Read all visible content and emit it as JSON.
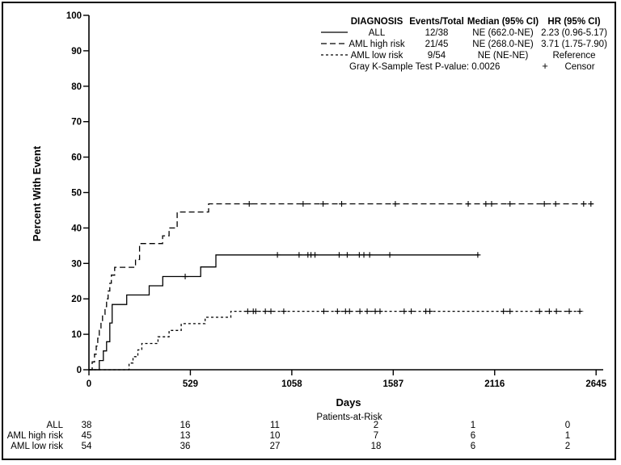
{
  "figure": {
    "background": "#ffffff",
    "foreground": "#000000",
    "border_color": "#000000"
  },
  "chart_data": {
    "type": "line",
    "subtype": "cumulative-incidence-step",
    "title": "",
    "xlabel": "Days",
    "ylabel": "Percent With Event",
    "xlim": [
      0,
      2645
    ],
    "ylim": [
      0,
      100
    ],
    "xticks": [
      0,
      529,
      1058,
      1587,
      2116,
      2645
    ],
    "yticks": [
      0,
      10,
      20,
      30,
      40,
      50,
      60,
      70,
      80,
      90,
      100
    ],
    "grid": false,
    "legend": {
      "position": "top-right",
      "headers": [
        "DIAGNOSIS",
        "Events/Total",
        "Median (95% CI)",
        "HR (95% CI)"
      ],
      "pvalue_text": "Gray K-Sample Test P-value: 0.0026",
      "censor_symbol": "+",
      "censor_label": "Censor"
    },
    "series": [
      {
        "name": "ALL",
        "line_style": "solid",
        "events_total": "12/38",
        "median_ci": "NE (662.0-NE)",
        "hr_ci": "2.23 (0.96-5.17)",
        "steps": [
          [
            0,
            0
          ],
          [
            54,
            2.6
          ],
          [
            75,
            5.3
          ],
          [
            92,
            7.9
          ],
          [
            109,
            13.2
          ],
          [
            121,
            18.4
          ],
          [
            197,
            21.1
          ],
          [
            314,
            23.7
          ],
          [
            385,
            26.3
          ],
          [
            583,
            29.0
          ],
          [
            662,
            32.4
          ]
        ],
        "end_day": 2035,
        "censor_days": [
          502,
          983,
          1096,
          1142,
          1158,
          1179,
          1305,
          1347,
          1410,
          1434,
          1464,
          1569,
          2028
        ]
      },
      {
        "name": "AML high risk",
        "line_style": "long-dash",
        "events_total": "21/45",
        "median_ci": "NE (268.0-NE)",
        "hr_ci": "3.71 (1.75-7.90)",
        "steps": [
          [
            0,
            0
          ],
          [
            17,
            2.2
          ],
          [
            29,
            4.4
          ],
          [
            38,
            6.7
          ],
          [
            46,
            8.9
          ],
          [
            54,
            11.1
          ],
          [
            63,
            13.3
          ],
          [
            71,
            15.6
          ],
          [
            84,
            17.8
          ],
          [
            92,
            20.0
          ],
          [
            100,
            22.2
          ],
          [
            109,
            24.4
          ],
          [
            117,
            26.7
          ],
          [
            134,
            28.9
          ],
          [
            243,
            31.1
          ],
          [
            264,
            35.6
          ],
          [
            384,
            37.8
          ],
          [
            418,
            40.0
          ],
          [
            460,
            44.5
          ],
          [
            624,
            46.8
          ]
        ],
        "end_day": 2630,
        "censor_days": [
          836,
          1117,
          1221,
          1318,
          1598,
          1978,
          2070,
          2100,
          2196,
          2375,
          2434,
          2580,
          2618
        ]
      },
      {
        "name": "AML low risk",
        "line_style": "short-dash",
        "events_total": "9/54",
        "median_ci": "NE (NE-NE)",
        "hr_ci": "Reference",
        "steps": [
          [
            0,
            0
          ],
          [
            209,
            1.9
          ],
          [
            230,
            3.7
          ],
          [
            255,
            5.6
          ],
          [
            276,
            7.4
          ],
          [
            360,
            9.3
          ],
          [
            418,
            11.1
          ],
          [
            481,
            13.0
          ],
          [
            606,
            14.8
          ],
          [
            740,
            16.5
          ]
        ],
        "end_day": 2580,
        "censor_days": [
          828,
          857,
          870,
          920,
          949,
          1016,
          1225,
          1296,
          1338,
          1359,
          1413,
          1451,
          1493,
          1518,
          1644,
          1681,
          1757,
          1778,
          2162,
          2196,
          2350,
          2401,
          2438,
          2505,
          2560
        ]
      }
    ],
    "at_risk": {
      "title": "Patients-at-Risk",
      "rows": [
        {
          "label": "ALL",
          "values": [
            38,
            16,
            11,
            2,
            1,
            0
          ]
        },
        {
          "label": "AML high risk",
          "values": [
            45,
            13,
            10,
            7,
            6,
            1
          ]
        },
        {
          "label": "AML low risk",
          "values": [
            54,
            36,
            27,
            18,
            6,
            2
          ]
        }
      ]
    }
  }
}
